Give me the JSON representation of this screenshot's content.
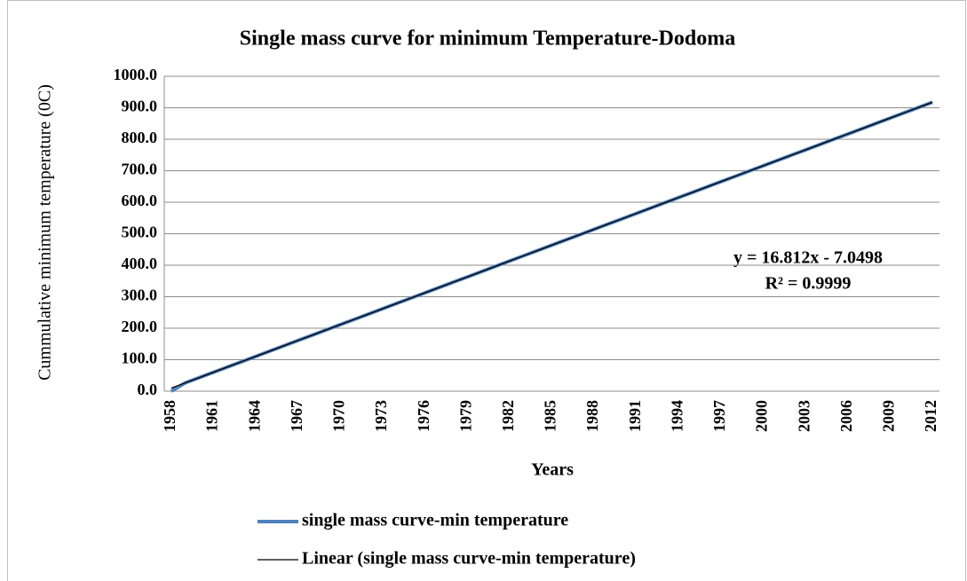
{
  "chart_data": {
    "type": "line",
    "title": "Single mass curve for minimum Temperature-Dodoma",
    "x_label": "Years",
    "y_label": "Cummulative minimum temperature (0C)",
    "categories": [
      "1958",
      null,
      null,
      "1961",
      null,
      null,
      "1964",
      null,
      null,
      "1967",
      null,
      null,
      "1970",
      null,
      null,
      "1973",
      null,
      null,
      "1976",
      null,
      null,
      "1979",
      null,
      null,
      "1982",
      null,
      null,
      "1985",
      null,
      null,
      "1988",
      null,
      null,
      "1991",
      null,
      null,
      "1994",
      null,
      null,
      "1997",
      null,
      null,
      "2000",
      null,
      null,
      "2003",
      null,
      null,
      "2006",
      null,
      null,
      "2009",
      null,
      null,
      "2012"
    ],
    "series": [
      {
        "name": "single mass curve-min temperature",
        "color": "#4f81bd",
        "values": [
          0,
          26.6,
          43.4,
          60.2,
          77.0,
          93.8,
          110.6,
          127.4,
          144.3,
          161.1,
          177.9,
          194.7,
          211.5,
          228.3,
          245.1,
          262.0,
          278.8,
          295.6,
          312.4,
          329.2,
          346.0,
          362.8,
          379.6,
          396.4,
          413.3,
          430.1,
          446.9,
          463.7,
          480.5,
          497.3,
          514.1,
          530.9,
          547.7,
          564.6,
          581.4,
          598.2,
          615.0,
          631.8,
          648.6,
          665.4,
          682.2,
          699.1,
          715.9,
          732.7,
          749.5,
          766.3,
          783.1,
          799.9,
          816.7,
          833.5,
          850.4,
          867.2,
          884.0,
          900.8,
          917.6
        ]
      },
      {
        "name": "Linear (single mass curve-min temperature)",
        "color": "#000000",
        "values": [
          9.8,
          26.6,
          43.4,
          60.2,
          77.0,
          93.8,
          110.6,
          127.4,
          144.3,
          161.1,
          177.9,
          194.7,
          211.5,
          228.3,
          245.1,
          262.0,
          278.8,
          295.6,
          312.4,
          329.2,
          346.0,
          362.8,
          379.6,
          396.4,
          413.3,
          430.1,
          446.9,
          463.7,
          480.5,
          497.3,
          514.1,
          530.9,
          547.7,
          564.6,
          581.4,
          598.2,
          615.0,
          631.8,
          648.6,
          665.4,
          682.2,
          699.1,
          715.9,
          732.7,
          749.5,
          766.3,
          783.1,
          799.9,
          816.7,
          833.5,
          850.4,
          867.2,
          884.0,
          900.8,
          917.6
        ]
      }
    ],
    "annotations": [
      "y = 16.812x - 7.0498",
      "R² = 0.9999"
    ],
    "ylim": [
      0,
      1000
    ],
    "yticks": [
      {
        "value": 0,
        "label": "0.0"
      },
      {
        "value": 100,
        "label": "100.0"
      },
      {
        "value": 200,
        "label": "200.0"
      },
      {
        "value": 300,
        "label": "300.0"
      },
      {
        "value": 400,
        "label": "400.0"
      },
      {
        "value": 500,
        "label": "500.0"
      },
      {
        "value": 600,
        "label": "600.0"
      },
      {
        "value": 700,
        "label": "700.0"
      },
      {
        "value": 800,
        "label": "800.0"
      },
      {
        "value": 900,
        "label": "900.0"
      },
      {
        "value": 1000,
        "label": "1000.0"
      }
    ],
    "grid": true,
    "legend": "bottom"
  }
}
